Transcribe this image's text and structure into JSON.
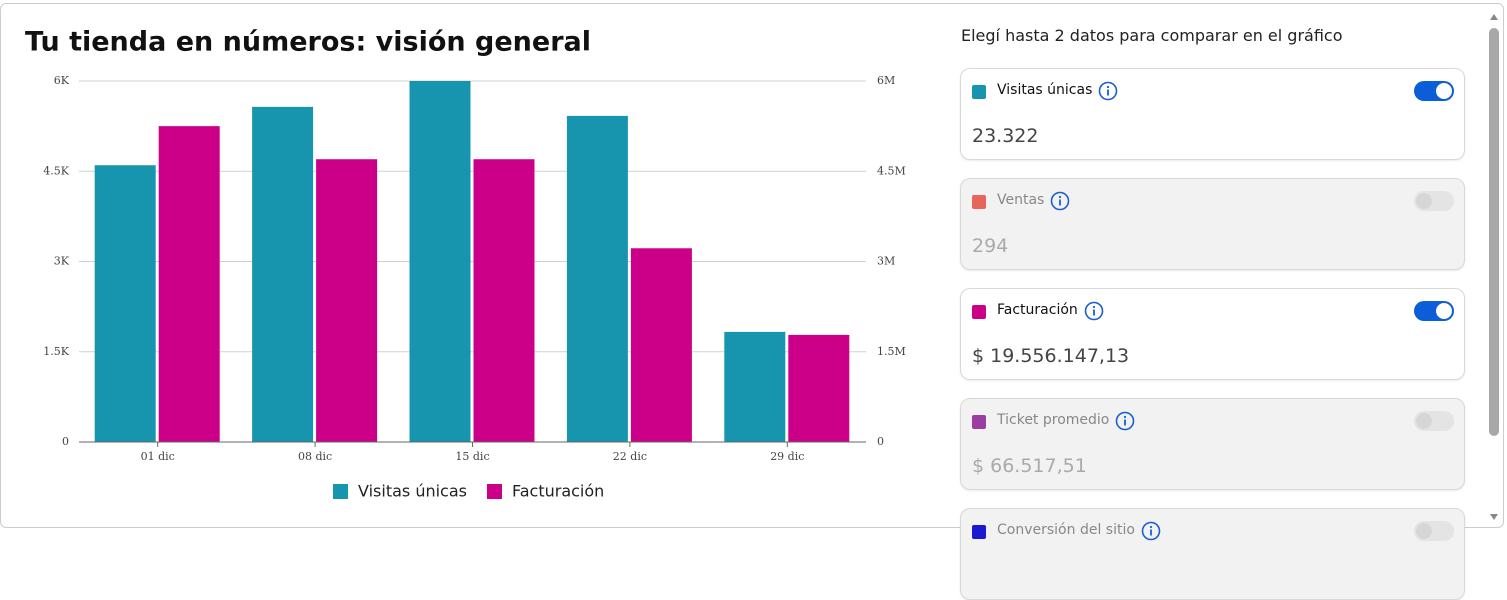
{
  "chart_data": {
    "type": "bar",
    "title": "Tu tienda en números: visión general",
    "categories": [
      "01 dic",
      "08 dic",
      "15 dic",
      "22 dic",
      "29 dic"
    ],
    "series": [
      {
        "name": "Visitas únicas",
        "color": "#1795ae",
        "values": [
          4600,
          5570,
          6000,
          5420,
          1830
        ]
      },
      {
        "name": "Facturación",
        "color": "#cc0088",
        "axis": "y2",
        "values": [
          5250000,
          4700000,
          4700000,
          3220000,
          1780000
        ]
      }
    ],
    "ylim": [
      0,
      6000
    ],
    "yticks": [
      0,
      {
        "value": 1500,
        "label": "1.5K"
      },
      {
        "value": 3000,
        "label": "3K"
      },
      {
        "value": 4500,
        "label": "4.5K"
      },
      {
        "value": 6000,
        "label": "6K"
      }
    ],
    "y2lim": [
      0,
      6000000
    ],
    "y2ticks": [
      0,
      {
        "value": 1500000,
        "label": "1.5M"
      },
      {
        "value": 3000000,
        "label": "3M"
      },
      {
        "value": 4500000,
        "label": "4.5M"
      },
      {
        "value": 6000000,
        "label": "6M"
      }
    ],
    "grid": true,
    "legend": "bottom"
  },
  "panel": {
    "title": "Elegí hasta 2 datos para comparar en el gráfico",
    "metrics": [
      {
        "name": "Visitas únicas",
        "value": "23.322",
        "color": "#1795ae",
        "enabled": true
      },
      {
        "name": "Ventas",
        "value": "294",
        "color": "#e8655a",
        "enabled": false
      },
      {
        "name": "Facturación",
        "value": "$ 19.556.147,13",
        "color": "#cc0088",
        "enabled": true
      },
      {
        "name": "Ticket promedio",
        "value": "$ 66.517,51",
        "color": "#9b3ea0",
        "enabled": false
      },
      {
        "name": "Conversión del sitio",
        "value": "",
        "color": "#1a1ad0",
        "enabled": false
      }
    ]
  }
}
